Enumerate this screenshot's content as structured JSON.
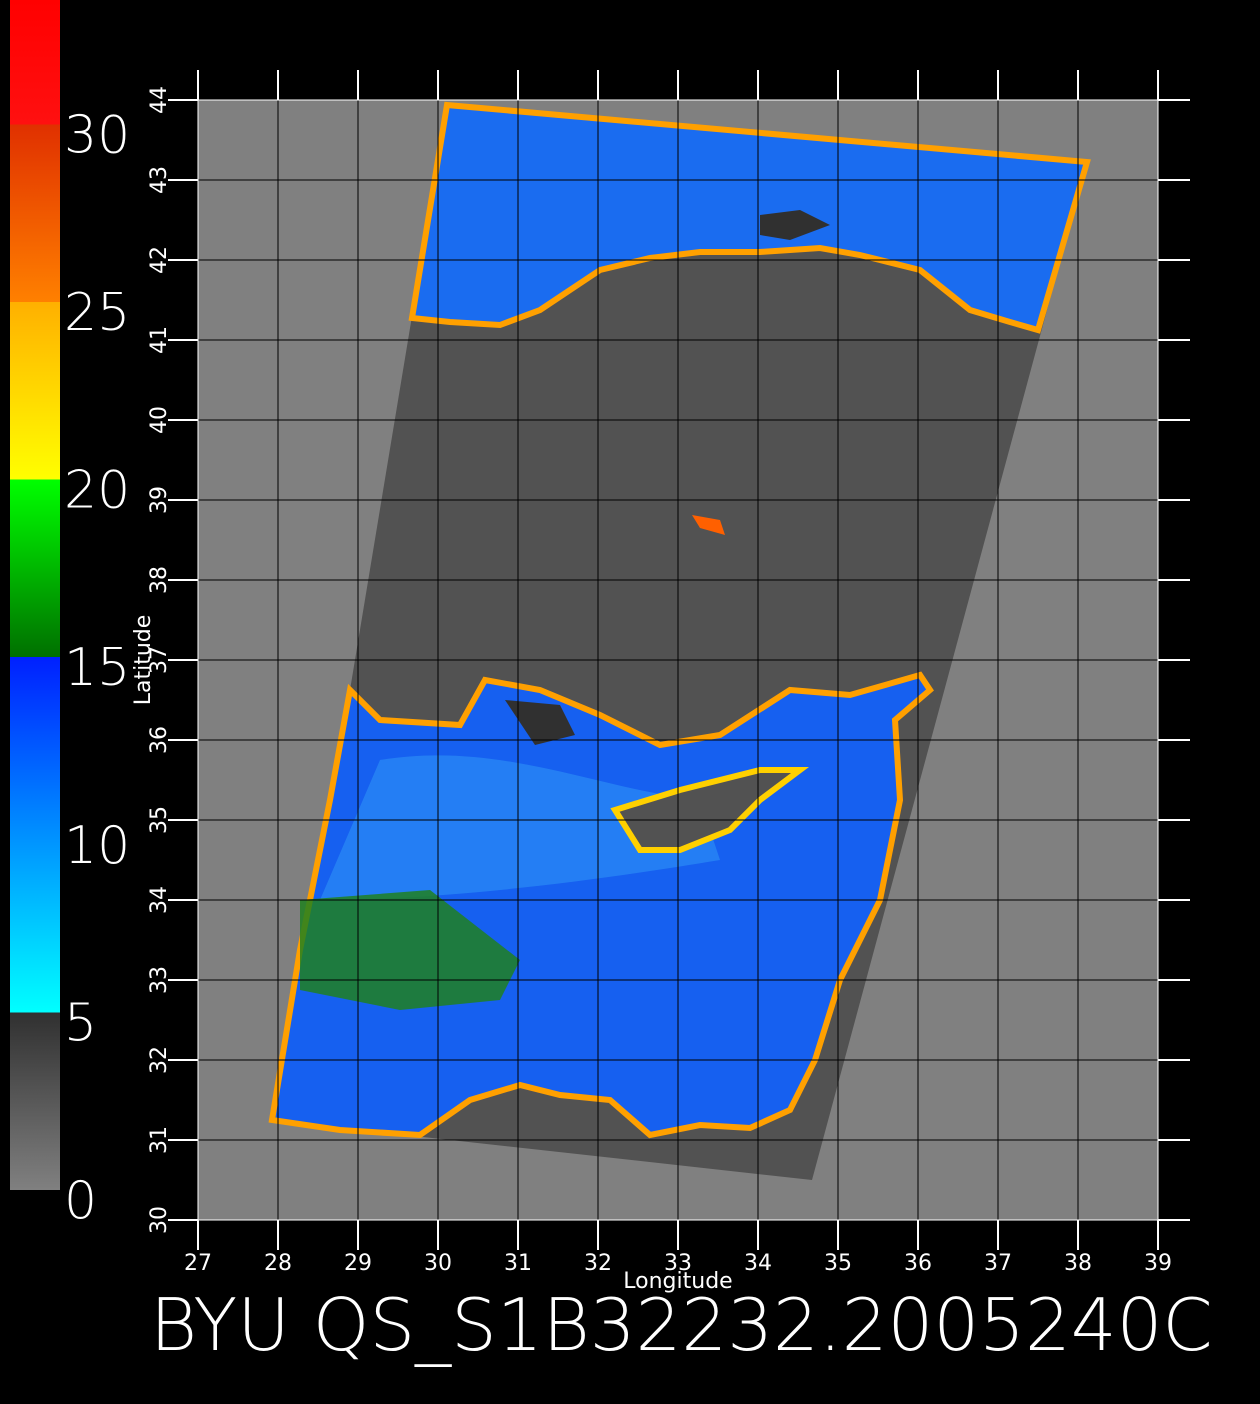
{
  "chart_data": {
    "type": "map",
    "title": "BYU QS_S1B32232.2005240C",
    "xlabel": "Longitude",
    "ylabel": "Latitude",
    "xlim": [
      27,
      39
    ],
    "ylim": [
      30,
      44
    ],
    "xticks": [
      27,
      28,
      29,
      30,
      31,
      32,
      33,
      34,
      35,
      36,
      37,
      38,
      39
    ],
    "yticks": [
      30,
      31,
      32,
      33,
      34,
      35,
      36,
      37,
      38,
      39,
      40,
      41,
      42,
      43,
      44
    ],
    "colorbar": {
      "lim": [
        0,
        33.5
      ],
      "ticks": [
        0,
        5,
        10,
        15,
        20,
        25,
        30
      ],
      "stops": [
        {
          "value": 0,
          "color": "#808080"
        },
        {
          "value": 5,
          "color": "#303030"
        },
        {
          "value": 5,
          "color": "#00ffff"
        },
        {
          "value": 10,
          "color": "#0090ff"
        },
        {
          "value": 15,
          "color": "#0020ff"
        },
        {
          "value": 15,
          "color": "#007000"
        },
        {
          "value": 20,
          "color": "#00ff00"
        },
        {
          "value": 20,
          "color": "#ffff00"
        },
        {
          "value": 25,
          "color": "#ffb000"
        },
        {
          "value": 25,
          "color": "#ff8000"
        },
        {
          "value": 30,
          "color": "#e03000"
        },
        {
          "value": 30,
          "color": "#ff1010"
        },
        {
          "value": 33.5,
          "color": "#ff0000"
        }
      ]
    }
  }
}
